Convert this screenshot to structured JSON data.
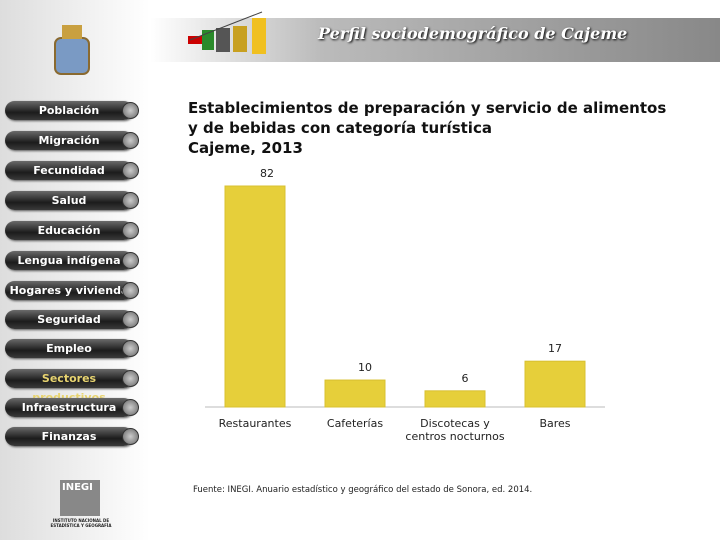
{
  "header": {
    "title": "Perfil sociodemográfico de Cajeme"
  },
  "menu": {
    "items": [
      "Población",
      "Migración",
      "Fecundidad",
      "Salud",
      "Educación",
      "Lengua indígena",
      "Hogares y vivienda",
      "Seguridad",
      "Empleo",
      "Sectores productivos",
      "Infraestructura",
      "Finanzas"
    ],
    "active_index": 9
  },
  "logo": {
    "name": "INEGI",
    "caption": "INSTITUTO NACIONAL DE ESTADÍSTICA Y GEOGRAFÍA"
  },
  "chart_data": {
    "type": "bar",
    "title": [
      "Establecimientos de preparación y servicio de alimentos",
      "y de bebidas con categoría turística"
    ],
    "subtitle": "Cajeme, 2013",
    "categories": [
      "Restaurantes",
      "Cafeterías",
      "Discotecas y centros nocturnos",
      "Bares"
    ],
    "values": [
      82,
      10,
      6,
      17
    ],
    "color": "#e6cf3a",
    "source": "Fuente: INEGI. Anuario estadístico y geográfico del estado de Sonora, ed. 2014."
  }
}
